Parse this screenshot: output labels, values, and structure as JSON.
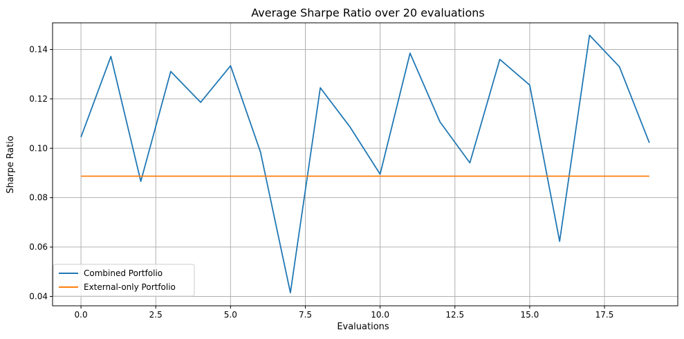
{
  "chart_data": {
    "type": "line",
    "title": "Average Sharpe Ratio over 20 evaluations",
    "xlabel": "Evaluations",
    "ylabel": "Sharpe Ratio",
    "xlim": [
      -0.95,
      19.95
    ],
    "ylim": [
      0.0362,
      0.1508
    ],
    "xticks": [
      0.0,
      2.5,
      5.0,
      7.5,
      10.0,
      12.5,
      15.0,
      17.5
    ],
    "xtick_labels": [
      "0.0",
      "2.5",
      "5.0",
      "7.5",
      "10.0",
      "12.5",
      "15.0",
      "17.5"
    ],
    "yticks": [
      0.04,
      0.06,
      0.08,
      0.1,
      0.12,
      0.14
    ],
    "ytick_labels": [
      "0.04",
      "0.06",
      "0.08",
      "0.10",
      "0.12",
      "0.14"
    ],
    "grid": true,
    "legend_position": "lower-left",
    "x": [
      0,
      1,
      2,
      3,
      4,
      5,
      6,
      7,
      8,
      9,
      10,
      11,
      12,
      13,
      14,
      15,
      16,
      17,
      18,
      19
    ],
    "series": [
      {
        "name": "Combined Portfolio",
        "color": "#1f77b4",
        "values": [
          0.1045,
          0.1372,
          0.0866,
          0.1311,
          0.1186,
          0.1334,
          0.0985,
          0.0415,
          0.1245,
          0.1085,
          0.0895,
          0.1385,
          0.1107,
          0.0941,
          0.136,
          0.1256,
          0.0623,
          0.1458,
          0.133,
          0.1022
        ]
      },
      {
        "name": "External-only Portfolio",
        "color": "#ff7f0e",
        "values": [
          0.0887,
          0.0887,
          0.0887,
          0.0887,
          0.0887,
          0.0887,
          0.0887,
          0.0887,
          0.0887,
          0.0887,
          0.0887,
          0.0887,
          0.0887,
          0.0887,
          0.0887,
          0.0887,
          0.0887,
          0.0887,
          0.0887,
          0.0887
        ]
      }
    ]
  }
}
